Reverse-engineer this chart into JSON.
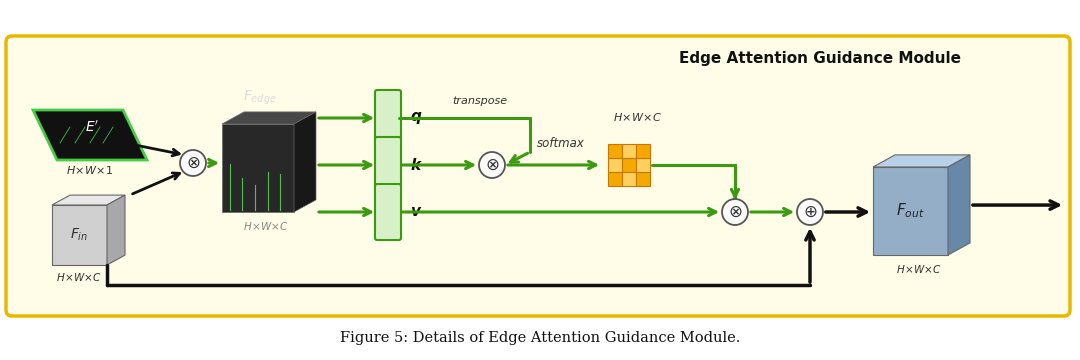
{
  "bg_color": "#fffde7",
  "border_color": "#e8b800",
  "green": "#3a9a10",
  "black": "#111111",
  "title": "Edge Attention Guidance Module",
  "caption": "Figure 5: Details of Edge Attention Guidance Module.",
  "green_box_fill": "#d8f0c8",
  "green_box_edge": "#3a9a10",
  "orange_fill": "#f5a800",
  "orange_edge": "#c87800",
  "orange_light": "#ffd060",
  "blue_face": "#94aec8",
  "blue_top": "#b8d0e8",
  "blue_side": "#6888a8",
  "gray_face": "#d0d0d0",
  "gray_top": "#e8e8e8",
  "gray_side": "#a8a8a8",
  "dark_face": "#282828",
  "dark_top": "#484848",
  "dark_side": "#181818"
}
